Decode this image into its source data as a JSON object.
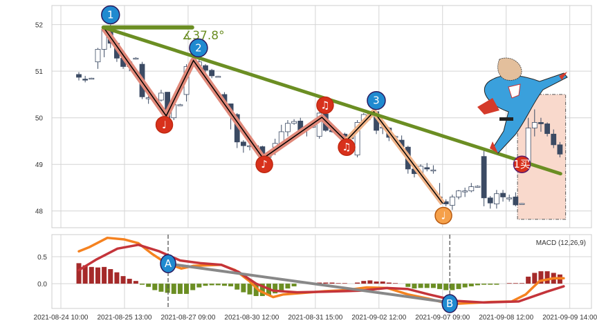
{
  "chart_data": [
    {
      "type": "candlestick",
      "title": "",
      "ylim": [
        47.64,
        52.41
      ],
      "yticks": [
        48,
        49,
        50,
        51,
        52
      ],
      "grid": true,
      "x_tick_labels": [
        "2021-08-24 10:00",
        "2021-08-25 13:00",
        "2021-08-27 09:00",
        "2021-08-30 12:00",
        "2021-08-31 15:00",
        "2021-09-02 12:00",
        "2021-09-07 09:00",
        "2021-09-08 12:00",
        "2021-09-09 14:00"
      ],
      "ohlc_note": "each bar: [open, high, low, close]",
      "ohlc": [
        [
          50.93,
          50.98,
          50.8,
          50.87
        ],
        [
          50.83,
          50.9,
          50.76,
          50.82
        ],
        [
          50.85,
          50.86,
          50.84,
          50.85
        ],
        [
          51.2,
          51.5,
          51.05,
          51.47
        ],
        [
          51.47,
          51.95,
          51.3,
          51.9
        ],
        [
          51.95,
          52.0,
          51.5,
          51.6
        ],
        [
          51.6,
          51.65,
          51.2,
          51.28
        ],
        [
          51.28,
          51.3,
          51.05,
          51.1
        ],
        [
          51.1,
          51.25,
          51.0,
          51.2
        ],
        [
          51.28,
          51.3,
          51.25,
          51.28
        ],
        [
          51.15,
          51.2,
          50.4,
          50.45
        ],
        [
          50.43,
          50.55,
          50.3,
          50.43
        ],
        [
          50.42,
          50.5,
          50.35,
          50.42
        ],
        [
          50.38,
          50.6,
          50.35,
          50.53
        ],
        [
          50.55,
          50.55,
          49.95,
          50.0
        ],
        [
          50.0,
          50.3,
          49.95,
          50.28
        ],
        [
          50.28,
          50.3,
          50.27,
          50.28
        ],
        [
          50.5,
          51.15,
          50.35,
          51.1
        ],
        [
          51.22,
          51.3,
          51.1,
          51.15
        ],
        [
          51.12,
          51.25,
          51.05,
          51.2
        ],
        [
          51.12,
          51.15,
          50.9,
          51.02
        ],
        [
          51.02,
          51.05,
          50.85,
          50.9
        ],
        [
          50.89,
          50.9,
          50.88,
          50.89
        ],
        [
          50.5,
          50.55,
          50.3,
          50.32
        ],
        [
          50.3,
          50.3,
          49.75,
          50.07
        ],
        [
          50.07,
          50.1,
          49.35,
          49.48
        ],
        [
          49.48,
          49.52,
          49.25,
          49.4
        ],
        [
          49.4,
          49.42,
          49.3,
          49.4
        ],
        [
          49.4,
          49.42,
          49.3,
          49.38
        ],
        [
          49.38,
          49.4,
          49.1,
          49.15
        ],
        [
          49.15,
          49.2,
          49.1,
          49.18
        ],
        [
          49.37,
          49.55,
          49.2,
          49.45
        ],
        [
          49.45,
          49.85,
          49.4,
          49.7
        ],
        [
          49.7,
          49.95,
          49.6,
          49.88
        ],
        [
          49.88,
          49.97,
          49.85,
          49.92
        ],
        [
          49.93,
          50.0,
          49.65,
          49.72
        ],
        [
          49.77,
          49.8,
          49.6,
          49.8
        ],
        [
          49.8,
          49.82,
          49.78,
          49.82
        ],
        [
          49.6,
          50.12,
          49.55,
          50.1
        ],
        [
          50.08,
          50.1,
          49.7,
          49.73
        ],
        [
          49.73,
          49.76,
          49.68,
          49.7
        ],
        [
          49.68,
          49.7,
          49.6,
          49.65
        ],
        [
          49.65,
          49.68,
          49.55,
          49.6
        ],
        [
          49.6,
          49.62,
          49.5,
          49.55
        ],
        [
          49.2,
          49.95,
          49.15,
          49.9
        ],
        [
          49.9,
          50.1,
          49.85,
          50.07
        ],
        [
          50.07,
          50.12,
          49.95,
          50.1
        ],
        [
          50.13,
          50.13,
          49.65,
          49.73
        ],
        [
          49.78,
          49.8,
          49.65,
          49.8
        ],
        [
          49.78,
          49.8,
          49.5,
          49.58
        ],
        [
          49.6,
          49.62,
          49.58,
          49.6
        ],
        [
          49.52,
          49.62,
          49.35,
          49.38
        ],
        [
          49.37,
          49.4,
          48.8,
          48.9
        ],
        [
          48.9,
          48.92,
          48.72,
          48.8
        ],
        [
          48.8,
          49.0,
          48.78,
          48.96
        ],
        [
          48.93,
          49.03,
          48.85,
          48.9
        ],
        [
          48.88,
          48.98,
          48.8,
          48.88
        ],
        [
          48.3,
          48.6,
          48.2,
          48.28
        ],
        [
          48.2,
          48.25,
          48.1,
          48.15
        ],
        [
          48.12,
          48.35,
          48.02,
          48.3
        ],
        [
          48.3,
          48.45,
          48.25,
          48.43
        ],
        [
          48.43,
          48.5,
          48.3,
          48.43
        ],
        [
          48.43,
          48.6,
          48.4,
          48.52
        ],
        [
          48.53,
          48.55,
          48.5,
          48.53
        ],
        [
          49.17,
          49.3,
          48.1,
          48.28
        ],
        [
          48.28,
          48.32,
          48.05,
          48.17
        ],
        [
          48.15,
          48.45,
          48.05,
          48.37
        ],
        [
          48.38,
          48.45,
          48.2,
          48.3
        ],
        [
          48.28,
          48.35,
          48.2,
          48.28
        ],
        [
          48.3,
          48.4,
          48.1,
          48.13
        ],
        [
          48.16,
          48.17,
          48.15,
          48.16
        ],
        [
          48.98,
          50.0,
          48.95,
          49.78
        ],
        [
          49.78,
          50.18,
          49.6,
          49.9
        ],
        [
          49.9,
          50.0,
          49.7,
          49.87
        ],
        [
          49.87,
          49.9,
          49.6,
          49.66
        ],
        [
          49.65,
          49.75,
          49.35,
          49.42
        ],
        [
          49.42,
          49.48,
          49.15,
          49.22
        ]
      ],
      "annotations": {
        "trendline": [
          [
            3.9,
            51.94
          ],
          [
            76.1,
            48.8
          ]
        ],
        "angle_baseline": [
          [
            3.9,
            51.94
          ],
          [
            17.9,
            51.94
          ]
        ],
        "angle_label": "∡37.8°",
        "zigzag": [
          [
            3.9,
            51.94
          ],
          [
            13.8,
            50.04
          ],
          [
            18.1,
            51.23
          ],
          [
            29.1,
            49.13
          ],
          [
            38.4,
            50.01
          ],
          [
            42.2,
            49.5
          ],
          [
            46.6,
            50.13
          ],
          [
            57.5,
            48.16
          ]
        ],
        "markers": [
          {
            "label": "1",
            "kind": "blue",
            "at": [
              5.0,
              52.21
            ]
          },
          {
            "label": "2",
            "kind": "blue",
            "at": [
              18.9,
              51.5
            ]
          },
          {
            "label": "3",
            "kind": "blue",
            "at": [
              46.99,
              50.37
            ]
          },
          {
            "label": "♩",
            "kind": "red",
            "at": [
              13.5,
              49.85
            ]
          },
          {
            "label": "♪",
            "kind": "red",
            "at": [
              29.3,
              49.0
            ]
          },
          {
            "label": "♫",
            "kind": "red",
            "at": [
              38.9,
              50.27
            ]
          },
          {
            "label": "♫",
            "kind": "red",
            "at": [
              42.3,
              49.37
            ]
          },
          {
            "label": "♩",
            "kind": "orange",
            "at": [
              57.6,
              47.9
            ]
          },
          {
            "label": "1买",
            "kind": "buy",
            "at": [
              70.0,
              49.0
            ]
          }
        ],
        "box": {
          "x": [
            69.3,
            76.9
          ],
          "y": [
            47.82,
            50.5
          ]
        }
      },
      "colors": {
        "up": "#ffffff",
        "down": "#3b4a63",
        "trend": "#6b8e23",
        "zigzag_band": "#e0897a",
        "zigzag_band2": "#f0b48a",
        "box": "#f9d9cc"
      }
    },
    {
      "type": "macd",
      "legend": "MACD (12,26,9)",
      "ylim": [
        -0.46,
        0.91
      ],
      "yticks": [
        0.0,
        0.5
      ],
      "ytick_labels": [
        "0.0",
        "0.5"
      ],
      "histogram": [
        0.38,
        0.34,
        0.31,
        0.3,
        0.31,
        0.27,
        0.21,
        0.14,
        0.09,
        0.05,
        -0.02,
        -0.06,
        -0.12,
        -0.15,
        -0.17,
        -0.19,
        -0.19,
        -0.19,
        -0.12,
        -0.07,
        -0.04,
        -0.03,
        -0.03,
        -0.04,
        -0.05,
        -0.11,
        -0.16,
        -0.2,
        -0.23,
        -0.23,
        -0.22,
        -0.18,
        -0.14,
        -0.09,
        -0.05,
        0,
        0,
        0,
        0.02,
        0.02,
        0.02,
        0.01,
        0.01,
        0,
        0.02,
        0.05,
        0.06,
        0.04,
        0.04,
        0.02,
        0.01,
        0,
        -0.06,
        -0.09,
        -0.08,
        -0.08,
        -0.08,
        -0.1,
        -0.12,
        -0.12,
        -0.1,
        -0.07,
        -0.05,
        -0.03,
        -0.02,
        -0.02,
        -0.02,
        0,
        0.01,
        0.01,
        0.01,
        0.13,
        0.2,
        0.23,
        0.23,
        0.2,
        0.17
      ],
      "series": [
        {
          "name": "DIF",
          "color": "#f58220",
          "points": [
            [
              0,
              0.6
            ],
            [
              1.7,
              0.68
            ],
            [
              4.5,
              0.85
            ],
            [
              7.2,
              0.82
            ],
            [
              9.4,
              0.75
            ],
            [
              11.6,
              0.55
            ],
            [
              13.8,
              0.38
            ],
            [
              16.2,
              0.28
            ],
            [
              18.1,
              0.33
            ],
            [
              22.5,
              0.35
            ],
            [
              24.7,
              0.25
            ],
            [
              26.9,
              0.05
            ],
            [
              28.5,
              -0.13
            ],
            [
              30.7,
              -0.25
            ],
            [
              32.3,
              -0.2
            ],
            [
              35.6,
              -0.17
            ],
            [
              38.9,
              -0.14
            ],
            [
              42.2,
              -0.12
            ],
            [
              45.5,
              -0.07
            ],
            [
              48.7,
              -0.08
            ],
            [
              52,
              -0.2
            ],
            [
              55.3,
              -0.28
            ],
            [
              58.6,
              -0.38
            ],
            [
              61.9,
              -0.36
            ],
            [
              65.1,
              -0.34
            ],
            [
              68.4,
              -0.33
            ],
            [
              70.6,
              -0.2
            ],
            [
              72.8,
              0.05
            ],
            [
              75,
              0.1
            ],
            [
              76.6,
              0.1
            ]
          ]
        },
        {
          "name": "DEA",
          "color": "#c4343a",
          "points": [
            [
              0,
              0.25
            ],
            [
              2.8,
              0.45
            ],
            [
              6.1,
              0.65
            ],
            [
              9.4,
              0.72
            ],
            [
              12.7,
              0.6
            ],
            [
              16,
              0.43
            ],
            [
              19.2,
              0.38
            ],
            [
              22.5,
              0.35
            ],
            [
              25.2,
              0.22
            ],
            [
              28,
              0.0
            ],
            [
              30.7,
              -0.13
            ],
            [
              34.5,
              -0.16
            ],
            [
              38.9,
              -0.15
            ],
            [
              44.4,
              -0.13
            ],
            [
              48.7,
              -0.08
            ],
            [
              52,
              -0.1
            ],
            [
              55.3,
              -0.2
            ],
            [
              59.7,
              -0.32
            ],
            [
              64,
              -0.35
            ],
            [
              69.5,
              -0.33
            ],
            [
              73.9,
              -0.15
            ],
            [
              76.6,
              -0.05
            ]
          ]
        }
      ],
      "divergence_line": [
        [
          14.1,
          0.37
        ],
        [
          58.6,
          -0.35
        ]
      ],
      "markers": [
        {
          "label": "A",
          "at": [
            14.1,
            0.37
          ]
        },
        {
          "label": "B",
          "at": [
            58.6,
            -0.37
          ]
        }
      ],
      "colors": {
        "pos": "#a52a2a",
        "neg": "#6b8e23",
        "divergence": "#888888"
      }
    }
  ]
}
